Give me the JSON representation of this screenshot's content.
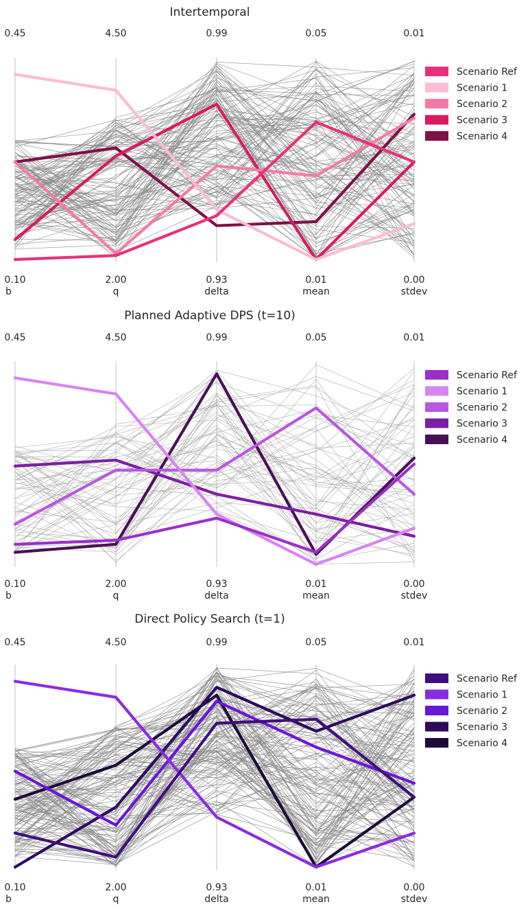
{
  "chart_data": [
    {
      "type": "parallel-coordinates",
      "title": "Intertemporal",
      "axes": [
        {
          "label": "b",
          "max": "0.45",
          "min": "0.10"
        },
        {
          "label": "q",
          "max": "4.50",
          "min": "2.00"
        },
        {
          "label": "delta",
          "max": "0.99",
          "min": "0.93"
        },
        {
          "label": "mean",
          "max": "0.05",
          "min": "0.01"
        },
        {
          "label": "stdev",
          "max": "0.01",
          "min": "0.00"
        }
      ],
      "background_color": "#888888",
      "background_count": 120,
      "series": [
        {
          "name": "Scenario Ref",
          "color": "#e8317a",
          "values": [
            0.0,
            0.02,
            0.22,
            0.69,
            0.49
          ]
        },
        {
          "name": "Scenario 1",
          "color": "#fbbcd4",
          "values": [
            0.93,
            0.85,
            0.25,
            0.0,
            0.18
          ]
        },
        {
          "name": "Scenario 2",
          "color": "#f47aa6",
          "values": [
            0.49,
            0.03,
            0.47,
            0.42,
            0.71
          ]
        },
        {
          "name": "Scenario 3",
          "color": "#d81b60",
          "values": [
            0.1,
            0.52,
            0.78,
            0.0,
            0.49
          ]
        },
        {
          "name": "Scenario 4",
          "color": "#7e1148",
          "values": [
            0.49,
            0.56,
            0.17,
            0.19,
            0.73
          ]
        }
      ],
      "legend": "right"
    },
    {
      "type": "parallel-coordinates",
      "title": "Planned Adaptive DPS (t=10)",
      "axes": [
        {
          "label": "b",
          "max": "0.45",
          "min": "0.10"
        },
        {
          "label": "q",
          "max": "4.50",
          "min": "2.00"
        },
        {
          "label": "delta",
          "max": "0.99",
          "min": "0.93"
        },
        {
          "label": "mean",
          "max": "0.05",
          "min": "0.01"
        },
        {
          "label": "stdev",
          "max": "0.01",
          "min": "0.00"
        }
      ],
      "background_color": "#aaaaaa",
      "background_count": 60,
      "series": [
        {
          "name": "Scenario Ref",
          "color": "#9b30c8",
          "values": [
            0.1,
            0.12,
            0.23,
            0.06,
            0.5
          ]
        },
        {
          "name": "Scenario 1",
          "color": "#d884f2",
          "values": [
            0.93,
            0.85,
            0.25,
            0.0,
            0.18
          ]
        },
        {
          "name": "Scenario 2",
          "color": "#b857e0",
          "values": [
            0.2,
            0.47,
            0.47,
            0.78,
            0.35
          ]
        },
        {
          "name": "Scenario 3",
          "color": "#7b1fa2",
          "values": [
            0.49,
            0.52,
            0.35,
            0.25,
            0.14
          ]
        },
        {
          "name": "Scenario 4",
          "color": "#4a1057",
          "values": [
            0.06,
            0.1,
            0.95,
            0.05,
            0.53
          ]
        }
      ],
      "legend": "right"
    },
    {
      "type": "parallel-coordinates",
      "title": "Direct Policy Search (t=1)",
      "axes": [
        {
          "label": "b",
          "max": "0.45",
          "min": "0.10"
        },
        {
          "label": "q",
          "max": "4.50",
          "min": "2.00"
        },
        {
          "label": "delta",
          "max": "0.99",
          "min": "0.93"
        },
        {
          "label": "mean",
          "max": "0.05",
          "min": "0.01"
        },
        {
          "label": "stdev",
          "max": "0.01",
          "min": "0.00"
        }
      ],
      "background_color": "#888888",
      "background_count": 140,
      "series": [
        {
          "name": "Scenario Ref",
          "color": "#3e0f7d",
          "values": [
            0.17,
            0.05,
            0.72,
            0.74,
            0.35
          ]
        },
        {
          "name": "Scenario 1",
          "color": "#8a2be2",
          "values": [
            0.93,
            0.85,
            0.25,
            0.0,
            0.17
          ]
        },
        {
          "name": "Scenario 2",
          "color": "#6a16d8",
          "values": [
            0.48,
            0.21,
            0.83,
            0.6,
            0.42
          ]
        },
        {
          "name": "Scenario 3",
          "color": "#2d0a5e",
          "values": [
            0.0,
            0.3,
            0.9,
            0.68,
            0.86
          ]
        },
        {
          "name": "Scenario 4",
          "color": "#1c0b3a",
          "values": [
            0.34,
            0.51,
            0.86,
            0.0,
            0.35
          ]
        }
      ],
      "legend": "right"
    }
  ]
}
